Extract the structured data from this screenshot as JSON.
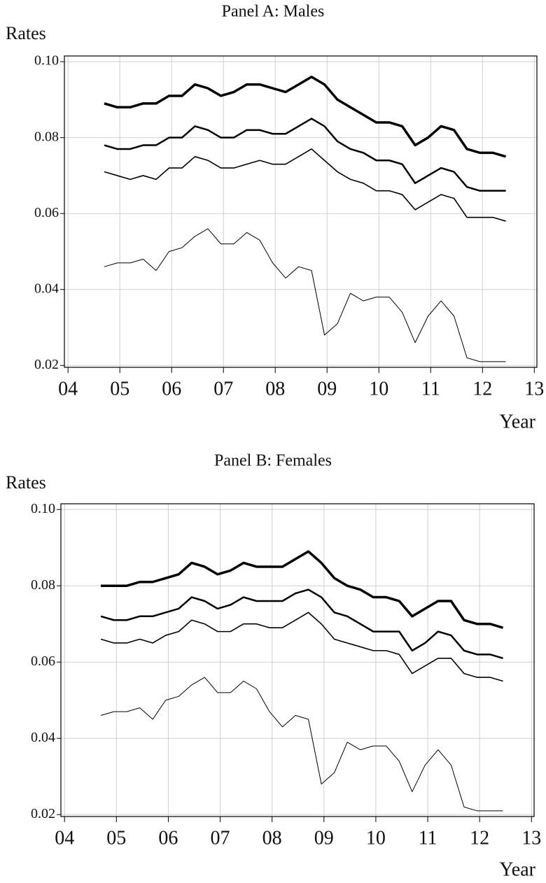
{
  "chart_data": [
    {
      "type": "line",
      "title": "Panel A: Males",
      "ylabel": "Rates",
      "xlabel": "Year",
      "grid": true,
      "x": [
        4.7,
        4.95,
        5.2,
        5.45,
        5.7,
        5.95,
        6.2,
        6.45,
        6.7,
        6.95,
        7.2,
        7.45,
        7.7,
        7.95,
        8.2,
        8.45,
        8.7,
        8.95,
        9.2,
        9.45,
        9.7,
        9.95,
        10.2,
        10.45,
        10.7,
        10.95,
        11.2,
        11.45,
        11.7,
        11.95,
        12.2,
        12.45
      ],
      "xlim": [
        3.93,
        13.05
      ],
      "xticks": [
        {
          "value": 4,
          "label": "04"
        },
        {
          "value": 5,
          "label": "05"
        },
        {
          "value": 6,
          "label": "06"
        },
        {
          "value": 7,
          "label": "07"
        },
        {
          "value": 8,
          "label": "08"
        },
        {
          "value": 9,
          "label": "09"
        },
        10,
        11,
        12,
        13
      ],
      "ylim": [
        0.0195,
        0.1015
      ],
      "yticks": [
        0.02,
        0.04,
        0.06,
        0.08,
        {
          "value": 0.1,
          "label": "0.10"
        }
      ],
      "series": [
        {
          "color": "#000000",
          "line_width": 3.5,
          "values": [
            0.089,
            0.088,
            0.088,
            0.089,
            0.089,
            0.091,
            0.091,
            0.094,
            0.093,
            0.091,
            0.092,
            0.094,
            0.094,
            0.093,
            0.092,
            0.094,
            0.096,
            0.094,
            0.09,
            0.088,
            0.086,
            0.084,
            0.084,
            0.083,
            0.078,
            0.08,
            0.083,
            0.082,
            0.077,
            0.076,
            0.076,
            0.075
          ]
        },
        {
          "color": "#000000",
          "line_width": 2.5,
          "values": [
            0.078,
            0.077,
            0.077,
            0.078,
            0.078,
            0.08,
            0.08,
            0.083,
            0.082,
            0.08,
            0.08,
            0.082,
            0.082,
            0.081,
            0.081,
            0.083,
            0.085,
            0.083,
            0.079,
            0.077,
            0.076,
            0.074,
            0.074,
            0.073,
            0.068,
            0.07,
            0.072,
            0.071,
            0.067,
            0.066,
            0.066,
            0.066
          ]
        },
        {
          "color": "#000000",
          "line_width": 1.6,
          "values": [
            0.071,
            0.07,
            0.069,
            0.07,
            0.069,
            0.072,
            0.072,
            0.075,
            0.074,
            0.072,
            0.072,
            0.073,
            0.074,
            0.073,
            0.073,
            0.075,
            0.077,
            0.074,
            0.071,
            0.069,
            0.068,
            0.066,
            0.066,
            0.065,
            0.061,
            0.063,
            0.065,
            0.064,
            0.059,
            0.059,
            0.059,
            0.058
          ]
        },
        {
          "color": "#000000",
          "line_width": 1,
          "values": [
            0.046,
            0.047,
            0.047,
            0.048,
            0.045,
            0.05,
            0.051,
            0.054,
            0.056,
            0.052,
            0.052,
            0.055,
            0.053,
            0.047,
            0.043,
            0.046,
            0.045,
            0.028,
            0.031,
            0.039,
            0.037,
            0.038,
            0.038,
            0.034,
            0.026,
            0.033,
            0.037,
            0.033,
            0.022,
            0.021,
            0.021,
            0.021
          ]
        }
      ]
    },
    {
      "type": "line",
      "title": "Panel B: Females",
      "ylabel": "Rates",
      "xlabel": "Year",
      "grid": true,
      "x": [
        4.7,
        4.95,
        5.2,
        5.45,
        5.7,
        5.95,
        6.2,
        6.45,
        6.7,
        6.95,
        7.2,
        7.45,
        7.7,
        7.95,
        8.2,
        8.45,
        8.7,
        8.95,
        9.2,
        9.45,
        9.7,
        9.95,
        10.2,
        10.45,
        10.7,
        10.95,
        11.2,
        11.45,
        11.7,
        11.95,
        12.2,
        12.45
      ],
      "xlim": [
        3.93,
        13.05
      ],
      "xticks": [
        {
          "value": 4,
          "label": "04"
        },
        {
          "value": 5,
          "label": "05"
        },
        {
          "value": 6,
          "label": "06"
        },
        {
          "value": 7,
          "label": "07"
        },
        {
          "value": 8,
          "label": "08"
        },
        {
          "value": 9,
          "label": "09"
        },
        10,
        11,
        12,
        13
      ],
      "ylim": [
        0.0195,
        0.1015
      ],
      "yticks": [
        0.02,
        0.04,
        0.06,
        0.08,
        {
          "value": 0.1,
          "label": "0.10"
        }
      ],
      "series": [
        {
          "color": "#000000",
          "line_width": 3.5,
          "values": [
            0.08,
            0.08,
            0.08,
            0.081,
            0.081,
            0.082,
            0.083,
            0.086,
            0.085,
            0.083,
            0.084,
            0.086,
            0.085,
            0.085,
            0.085,
            0.087,
            0.089,
            0.086,
            0.082,
            0.08,
            0.079,
            0.077,
            0.077,
            0.076,
            0.072,
            0.074,
            0.076,
            0.076,
            0.071,
            0.07,
            0.07,
            0.069
          ]
        },
        {
          "color": "#000000",
          "line_width": 2.5,
          "values": [
            0.072,
            0.071,
            0.071,
            0.072,
            0.072,
            0.073,
            0.074,
            0.077,
            0.076,
            0.074,
            0.075,
            0.077,
            0.076,
            0.076,
            0.076,
            0.078,
            0.079,
            0.077,
            0.073,
            0.072,
            0.07,
            0.068,
            0.068,
            0.068,
            0.063,
            0.065,
            0.068,
            0.067,
            0.063,
            0.062,
            0.062,
            0.061
          ]
        },
        {
          "color": "#000000",
          "line_width": 1.6,
          "values": [
            0.066,
            0.065,
            0.065,
            0.066,
            0.065,
            0.067,
            0.068,
            0.071,
            0.07,
            0.068,
            0.068,
            0.07,
            0.07,
            0.069,
            0.069,
            0.071,
            0.073,
            0.07,
            0.066,
            0.065,
            0.064,
            0.063,
            0.063,
            0.062,
            0.057,
            0.059,
            0.061,
            0.061,
            0.057,
            0.056,
            0.056,
            0.055
          ]
        },
        {
          "color": "#000000",
          "line_width": 1,
          "values": [
            0.046,
            0.047,
            0.047,
            0.048,
            0.045,
            0.05,
            0.051,
            0.054,
            0.056,
            0.052,
            0.052,
            0.055,
            0.053,
            0.047,
            0.043,
            0.046,
            0.045,
            0.028,
            0.031,
            0.039,
            0.037,
            0.038,
            0.038,
            0.034,
            0.026,
            0.033,
            0.037,
            0.033,
            0.022,
            0.021,
            0.021,
            0.021
          ]
        }
      ]
    }
  ]
}
